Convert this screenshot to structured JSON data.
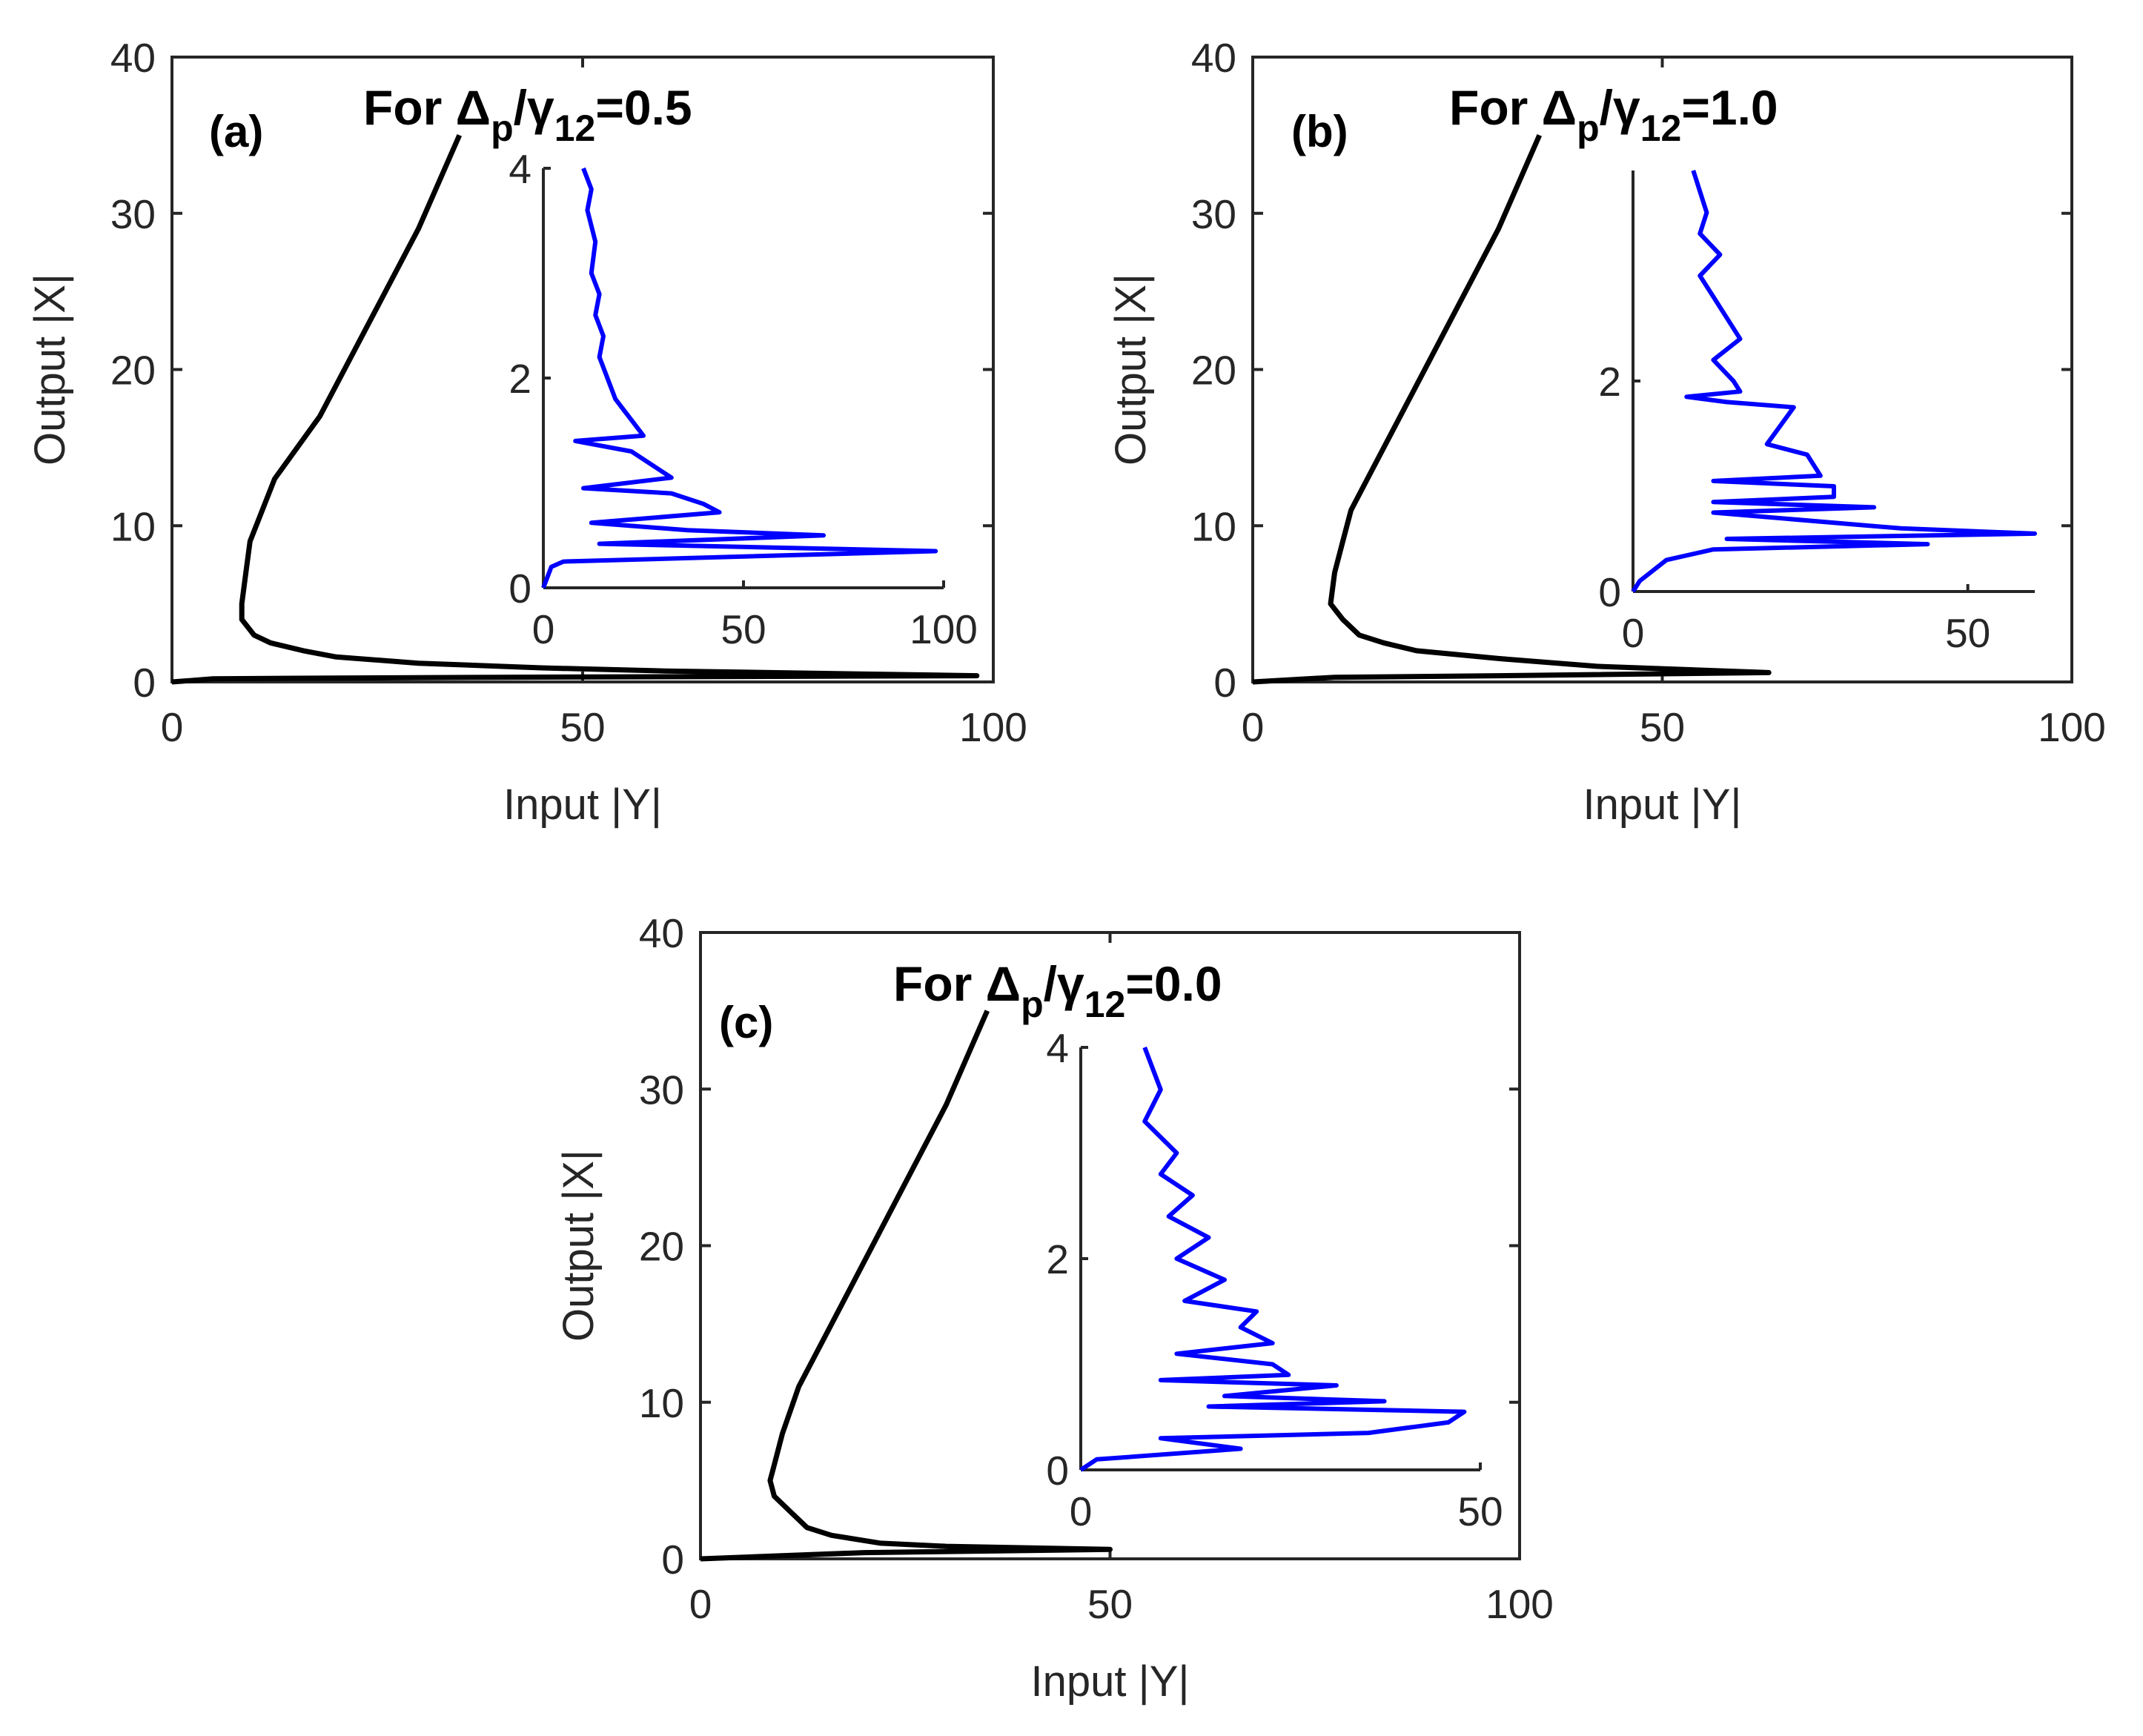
{
  "chart_data": [
    {
      "id": "a",
      "type": "line",
      "panel_label": "(a)",
      "title": {
        "prefix": "For ",
        "delta": "Δ",
        "delta_sub": "p",
        "slash": "/",
        "gamma": "γ",
        "gamma_sub": "12",
        "value": "=0.5"
      },
      "xlabel": "Input |Y|",
      "ylabel": "Output |X|",
      "xlim": [
        0,
        100
      ],
      "ylim": [
        0,
        40
      ],
      "xticks": [
        "0",
        "50",
        "100"
      ],
      "yticks": [
        "0",
        "10",
        "20",
        "30",
        "40"
      ],
      "grid": false,
      "series": [
        {
          "name": "main",
          "color": "#000000",
          "x": [
            35,
            30,
            24,
            18,
            12.5,
            11,
            9.5,
            9,
            8.5,
            8.5,
            10,
            12,
            16,
            20,
            30,
            45,
            60,
            98,
            40,
            20,
            5,
            0
          ],
          "y": [
            35,
            29,
            23,
            17,
            13,
            11,
            9,
            7,
            5,
            4,
            3,
            2.5,
            2,
            1.6,
            1.2,
            0.9,
            0.7,
            0.4,
            0.3,
            0.25,
            0.2,
            0
          ]
        }
      ],
      "inset": {
        "xlim": [
          0,
          100
        ],
        "ylim": [
          0,
          4
        ],
        "xticks": [
          "0",
          "50",
          "100"
        ],
        "yticks": [
          "0",
          "2",
          "4"
        ],
        "series": [
          {
            "name": "inset",
            "color": "#0000ff",
            "x": [
              10,
              12,
              11,
              13,
              12,
              14,
              13,
              15,
              14,
              16,
              18,
              20,
              22,
              25,
              8,
              22,
              28,
              32,
              10,
              32,
              40,
              44,
              12,
              36,
              70,
              14,
              98,
              5,
              2,
              0
            ],
            "y": [
              4,
              3.8,
              3.6,
              3.3,
              3.0,
              2.8,
              2.6,
              2.4,
              2.2,
              2.0,
              1.8,
              1.7,
              1.6,
              1.45,
              1.4,
              1.3,
              1.15,
              1.05,
              0.95,
              0.9,
              0.8,
              0.72,
              0.62,
              0.55,
              0.5,
              0.42,
              0.35,
              0.25,
              0.2,
              0
            ]
          }
        ]
      }
    },
    {
      "id": "b",
      "type": "line",
      "panel_label": "(b)",
      "title": {
        "prefix": "For ",
        "delta": "Δ",
        "delta_sub": "p",
        "slash": "/",
        "gamma": "γ",
        "gamma_sub": "12",
        "value": "=1.0"
      },
      "xlabel": "Input |Y|",
      "ylabel": "Output |X|",
      "xlim": [
        0,
        100
      ],
      "ylim": [
        0,
        40
      ],
      "xticks": [
        "0",
        "50",
        "100"
      ],
      "yticks": [
        "0",
        "10",
        "20",
        "30",
        "40"
      ],
      "grid": false,
      "series": [
        {
          "name": "main",
          "color": "#000000",
          "x": [
            35,
            30,
            24,
            19,
            16,
            14,
            12,
            11,
            10,
            9.5,
            11,
            13,
            16,
            20,
            30,
            42,
            63,
            30,
            10,
            0
          ],
          "y": [
            35,
            29,
            23,
            18,
            15,
            13,
            11,
            9,
            7,
            5,
            4,
            3,
            2.5,
            2,
            1.5,
            1,
            0.6,
            0.4,
            0.3,
            0
          ]
        }
      ],
      "inset": {
        "xlim": [
          0,
          60
        ],
        "ylim": [
          0,
          4
        ],
        "xticks": [
          "0",
          "50"
        ],
        "yticks": [
          "0",
          "2"
        ],
        "series": [
          {
            "name": "inset",
            "color": "#0000ff",
            "x": [
              9,
              11,
              10,
              13,
              10,
              12,
              14,
              16,
              12,
              15,
              16,
              8,
              14,
              24,
              20,
              26,
              28,
              12,
              30,
              30,
              12,
              36,
              12,
              40,
              60,
              14,
              44,
              12,
              5,
              1,
              0
            ],
            "y": [
              4,
              3.6,
              3.4,
              3.2,
              3.0,
              2.8,
              2.6,
              2.4,
              2.2,
              2.0,
              1.9,
              1.85,
              1.8,
              1.75,
              1.4,
              1.3,
              1.1,
              1.05,
              1.0,
              0.9,
              0.85,
              0.8,
              0.75,
              0.6,
              0.55,
              0.5,
              0.45,
              0.4,
              0.3,
              0.1,
              0
            ]
          }
        ]
      }
    },
    {
      "id": "c",
      "type": "line",
      "panel_label": "(c)",
      "title": {
        "prefix": "For ",
        "delta": "Δ",
        "delta_sub": "p",
        "slash": "/",
        "gamma": "γ",
        "gamma_sub": "12",
        "value": "=0.0"
      },
      "xlabel": "Input |Y|",
      "ylabel": "Output |X|",
      "xlim": [
        0,
        100
      ],
      "ylim": [
        0,
        40
      ],
      "xticks": [
        "0",
        "50",
        "100"
      ],
      "yticks": [
        "0",
        "10",
        "20",
        "30",
        "40"
      ],
      "grid": false,
      "series": [
        {
          "name": "main",
          "color": "#000000",
          "x": [
            35,
            30,
            24,
            19,
            15,
            12,
            10,
            9,
            8.5,
            9,
            11,
            13,
            16,
            22,
            30,
            50,
            20,
            0
          ],
          "y": [
            35,
            29,
            23,
            18,
            14,
            11,
            8,
            6,
            5,
            4,
            3,
            2,
            1.5,
            1,
            0.8,
            0.6,
            0.4,
            0
          ]
        }
      ],
      "inset": {
        "xlim": [
          0,
          50
        ],
        "ylim": [
          0,
          4
        ],
        "xticks": [
          "0",
          "50"
        ],
        "yticks": [
          "0",
          "2",
          "4"
        ],
        "series": [
          {
            "name": "inset",
            "color": "#0000ff",
            "x": [
              8,
              10,
              8,
              12,
              10,
              14,
              11,
              16,
              12,
              18,
              13,
              22,
              20,
              24,
              12,
              24,
              26,
              10,
              32,
              18,
              38,
              16,
              48,
              46,
              36,
              10,
              20,
              2,
              0
            ],
            "y": [
              4,
              3.6,
              3.3,
              3.0,
              2.8,
              2.6,
              2.4,
              2.2,
              2.0,
              1.8,
              1.6,
              1.5,
              1.35,
              1.2,
              1.1,
              1.0,
              0.9,
              0.85,
              0.8,
              0.7,
              0.65,
              0.6,
              0.55,
              0.45,
              0.35,
              0.3,
              0.2,
              0.1,
              0
            ]
          }
        ]
      }
    }
  ]
}
